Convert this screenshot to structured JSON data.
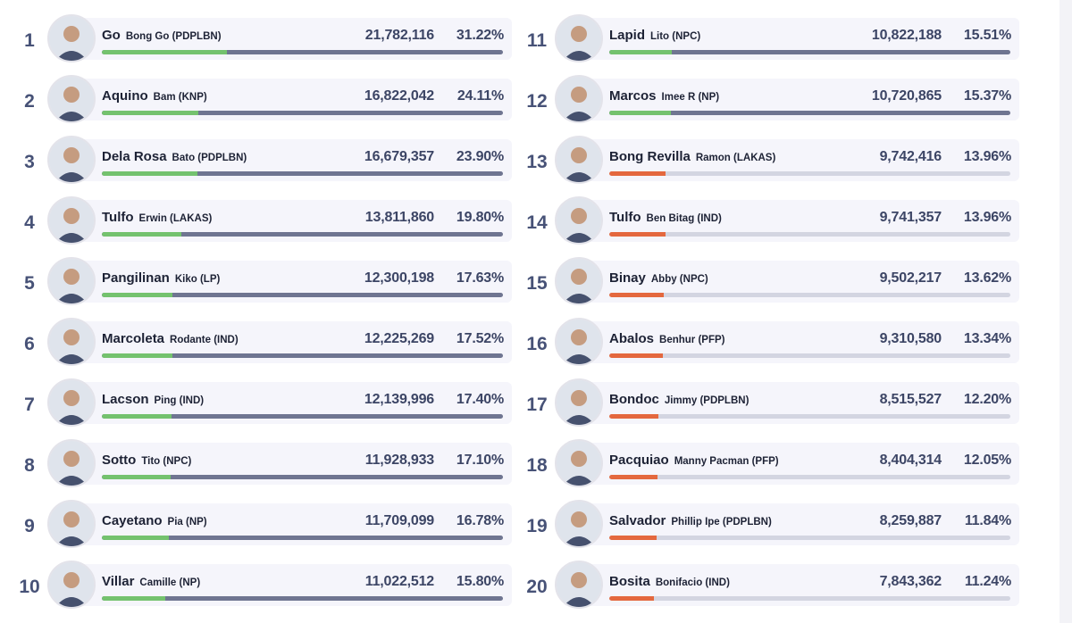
{
  "colors": {
    "win_fill": "#74c26e",
    "win_track": "#6f7591",
    "lose_fill": "#e4683e",
    "lose_track": "#d3d5e1"
  },
  "chart_data": {
    "type": "bar",
    "value_unit": "%",
    "xlim": [
      0,
      100
    ],
    "candidates": [
      {
        "rank": "1",
        "surname": "Go",
        "alias": "Bong Go (PDPLBN)",
        "votes": "21,782,116",
        "pct_label": "31.22%",
        "pct": 31.22,
        "status": "win"
      },
      {
        "rank": "2",
        "surname": "Aquino",
        "alias": "Bam (KNP)",
        "votes": "16,822,042",
        "pct_label": "24.11%",
        "pct": 24.11,
        "status": "win"
      },
      {
        "rank": "3",
        "surname": "Dela Rosa",
        "alias": "Bato (PDPLBN)",
        "votes": "16,679,357",
        "pct_label": "23.90%",
        "pct": 23.9,
        "status": "win"
      },
      {
        "rank": "4",
        "surname": "Tulfo",
        "alias": "Erwin (LAKAS)",
        "votes": "13,811,860",
        "pct_label": "19.80%",
        "pct": 19.8,
        "status": "win"
      },
      {
        "rank": "5",
        "surname": "Pangilinan",
        "alias": "Kiko (LP)",
        "votes": "12,300,198",
        "pct_label": "17.63%",
        "pct": 17.63,
        "status": "win"
      },
      {
        "rank": "6",
        "surname": "Marcoleta",
        "alias": "Rodante (IND)",
        "votes": "12,225,269",
        "pct_label": "17.52%",
        "pct": 17.52,
        "status": "win"
      },
      {
        "rank": "7",
        "surname": "Lacson",
        "alias": "Ping (IND)",
        "votes": "12,139,996",
        "pct_label": "17.40%",
        "pct": 17.4,
        "status": "win"
      },
      {
        "rank": "8",
        "surname": "Sotto",
        "alias": "Tito (NPC)",
        "votes": "11,928,933",
        "pct_label": "17.10%",
        "pct": 17.1,
        "status": "win"
      },
      {
        "rank": "9",
        "surname": "Cayetano",
        "alias": "Pia (NP)",
        "votes": "11,709,099",
        "pct_label": "16.78%",
        "pct": 16.78,
        "status": "win"
      },
      {
        "rank": "10",
        "surname": "Villar",
        "alias": "Camille (NP)",
        "votes": "11,022,512",
        "pct_label": "15.80%",
        "pct": 15.8,
        "status": "win"
      },
      {
        "rank": "11",
        "surname": "Lapid",
        "alias": "Lito (NPC)",
        "votes": "10,822,188",
        "pct_label": "15.51%",
        "pct": 15.51,
        "status": "win"
      },
      {
        "rank": "12",
        "surname": "Marcos",
        "alias": "Imee R (NP)",
        "votes": "10,720,865",
        "pct_label": "15.37%",
        "pct": 15.37,
        "status": "win"
      },
      {
        "rank": "13",
        "surname": "Bong Revilla",
        "alias": "Ramon (LAKAS)",
        "votes": "9,742,416",
        "pct_label": "13.96%",
        "pct": 13.96,
        "status": "lose"
      },
      {
        "rank": "14",
        "surname": "Tulfo",
        "alias": "Ben Bitag (IND)",
        "votes": "9,741,357",
        "pct_label": "13.96%",
        "pct": 13.96,
        "status": "lose"
      },
      {
        "rank": "15",
        "surname": "Binay",
        "alias": "Abby (NPC)",
        "votes": "9,502,217",
        "pct_label": "13.62%",
        "pct": 13.62,
        "status": "lose"
      },
      {
        "rank": "16",
        "surname": "Abalos",
        "alias": "Benhur (PFP)",
        "votes": "9,310,580",
        "pct_label": "13.34%",
        "pct": 13.34,
        "status": "lose"
      },
      {
        "rank": "17",
        "surname": "Bondoc",
        "alias": "Jimmy (PDPLBN)",
        "votes": "8,515,527",
        "pct_label": "12.20%",
        "pct": 12.2,
        "status": "lose"
      },
      {
        "rank": "18",
        "surname": "Pacquiao",
        "alias": "Manny Pacman (PFP)",
        "votes": "8,404,314",
        "pct_label": "12.05%",
        "pct": 12.05,
        "status": "lose"
      },
      {
        "rank": "19",
        "surname": "Salvador",
        "alias": "Phillip Ipe (PDPLBN)",
        "votes": "8,259,887",
        "pct_label": "11.84%",
        "pct": 11.84,
        "status": "lose"
      },
      {
        "rank": "20",
        "surname": "Bosita",
        "alias": "Bonifacio (IND)",
        "votes": "7,843,362",
        "pct_label": "11.24%",
        "pct": 11.24,
        "status": "lose"
      }
    ]
  }
}
